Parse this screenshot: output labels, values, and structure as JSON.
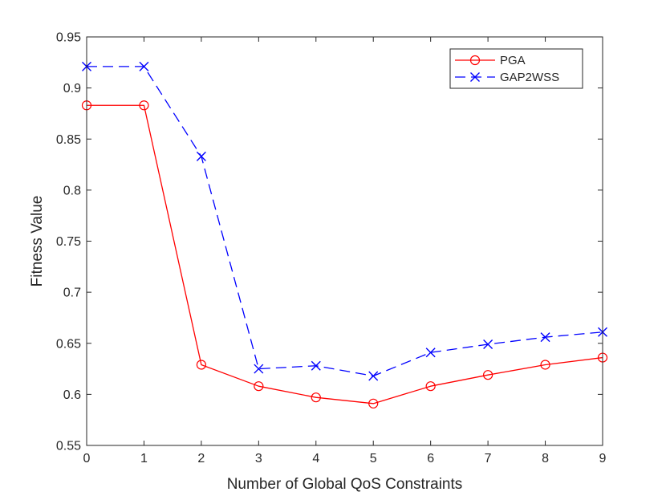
{
  "chart_data": {
    "type": "line",
    "xlabel": "Number of Global QoS Constraints",
    "ylabel": "Fitness Value",
    "xlim": [
      0,
      9
    ],
    "ylim": [
      0.55,
      0.95
    ],
    "xticks": [
      "0",
      "1",
      "2",
      "3",
      "4",
      "5",
      "6",
      "7",
      "8",
      "9"
    ],
    "yticks": [
      "0.55",
      "0.6",
      "0.65",
      "0.7",
      "0.75",
      "0.8",
      "0.85",
      "0.9",
      "0.95"
    ],
    "grid": false,
    "legend_position": "top-right",
    "x": [
      0,
      1,
      2,
      3,
      4,
      5,
      6,
      7,
      8,
      9
    ],
    "series": [
      {
        "name": "PGA",
        "values": [
          0.883,
          0.883,
          0.629,
          0.608,
          0.597,
          0.591,
          0.608,
          0.619,
          0.629,
          0.636
        ],
        "color": "#ff0000",
        "line_style": "solid",
        "marker": "circle"
      },
      {
        "name": "GAP2WSS",
        "values": [
          0.921,
          0.921,
          0.833,
          0.625,
          0.628,
          0.618,
          0.641,
          0.649,
          0.656,
          0.661
        ],
        "color": "#0000ff",
        "line_style": "dashed",
        "marker": "x"
      }
    ]
  }
}
